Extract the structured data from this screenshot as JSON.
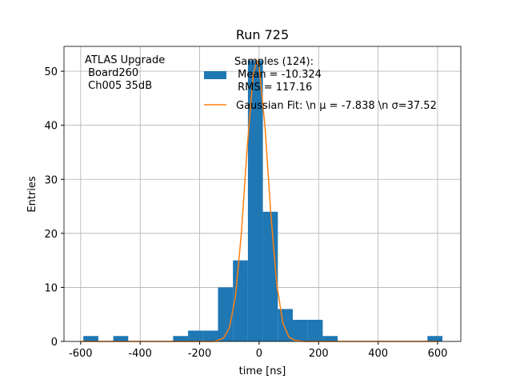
{
  "chart_data": {
    "type": "histogram",
    "title": "Run 725",
    "xlabel": "time [ns]",
    "ylabel": "Entries",
    "annotation": [
      "ATLAS Upgrade",
      " Board260",
      " Ch005 35dB"
    ],
    "bins": [
      -591,
      -540.7,
      -490.4,
      -440.1,
      -389.8,
      -339.5,
      -289.2,
      -238.9,
      -188.6,
      -138.3,
      -88,
      -37.7,
      12.6,
      62.9,
      113.2,
      163.5,
      213.8,
      264.1,
      314.4,
      364.7,
      415,
      465.3,
      515.6,
      565.9,
      616.2
    ],
    "series": [
      {
        "name": "Samples (124):\n Mean = -10.324\n RMS = 117.16",
        "color": "#1f77b4",
        "values": [
          1,
          0,
          1,
          0,
          0,
          0,
          1,
          2,
          2,
          10,
          15,
          52,
          24,
          6,
          4,
          4,
          1,
          0,
          0,
          0,
          0,
          0,
          0,
          1
        ]
      },
      {
        "name": "Gaussian Fit: \\n μ = -7.838 \\n σ=37.52",
        "color": "#ff7f0e",
        "x": [
          -600,
          -200,
          -150,
          -120,
          -100,
          -80,
          -60,
          -40,
          -20,
          -8,
          0,
          20,
          40,
          60,
          80,
          100,
          120,
          150,
          200,
          600
        ],
        "values": [
          0,
          0,
          0,
          0.6,
          2.5,
          8.2,
          19.8,
          36,
          49.3,
          52,
          50.9,
          39.5,
          23.1,
          10.2,
          3.4,
          0.8,
          0.2,
          0,
          0,
          0
        ]
      }
    ],
    "xlim": [
      -656,
      678
    ],
    "ylim": [
      0,
      54.6
    ],
    "xticks": [
      -600,
      -400,
      -200,
      0,
      200,
      400,
      600
    ],
    "yticks": [
      0,
      10,
      20,
      30,
      40,
      50
    ],
    "grid": true,
    "legend": "upper right"
  }
}
